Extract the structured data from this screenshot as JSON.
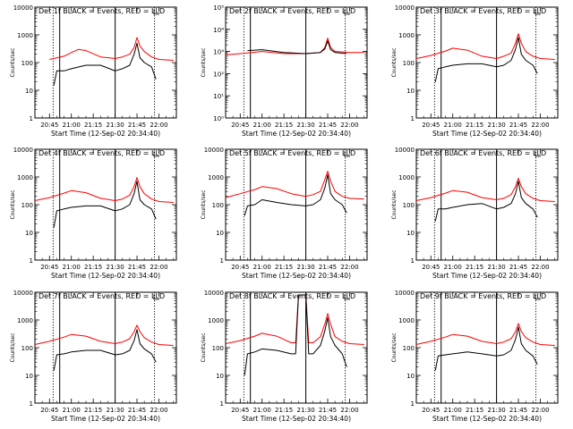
{
  "colors": {
    "events": "#000000",
    "lld": "#ff0000",
    "axes": "#000000",
    "background": "#ffffff"
  },
  "chart_data": [
    {
      "type": "line",
      "title": "Det 1f BLACK = Events, RED = LLD",
      "xlabel": "Start Time (12-Sep-02 20:34:40)",
      "ylabel": "Counts/sec",
      "x_tick_labels": [
        "20:45",
        "21:00",
        "21:15",
        "21:30",
        "21:45",
        "22:00"
      ],
      "y_tick_labels": [
        "1",
        "10",
        "100",
        "1000",
        "10000"
      ],
      "ylim": [
        1,
        10000
      ],
      "yscale": "log",
      "series": [
        {
          "x": [
            "20:45",
            "20:55",
            "21:00",
            "21:05",
            "21:10",
            "21:20",
            "21:30",
            "21:35",
            "21:40",
            "21:43",
            "21:45",
            "21:47",
            "21:50",
            "21:55",
            "22:00",
            "22:10"
          ],
          "values": [
            130,
            170,
            230,
            300,
            270,
            160,
            140,
            160,
            200,
            350,
            800,
            400,
            250,
            160,
            130,
            120
          ]
        },
        {
          "x": [
            "20:48",
            "20:50",
            "20:55",
            "21:00",
            "21:10",
            "21:20",
            "21:30",
            "21:35",
            "21:40",
            "21:43",
            "21:45",
            "21:47",
            "21:50",
            "21:55",
            "21:58"
          ],
          "values": [
            15,
            50,
            50,
            60,
            80,
            80,
            50,
            60,
            80,
            200,
            500,
            150,
            100,
            70,
            25
          ]
        }
      ]
    },
    {
      "type": "line",
      "title": "Det 2f BLACK = Events, RED = LLD",
      "xlabel": "Start Time (12-Sep-02 20:34:40)",
      "ylabel": "Counts/sec",
      "x_tick_labels": [
        "20:45",
        "21:00",
        "21:15",
        "21:30",
        "21:45",
        "22:00"
      ],
      "y_tick_labels": [
        "10⁰",
        "10¹",
        "10²",
        "10³",
        "10⁴",
        "10⁵"
      ],
      "ylim": [
        1,
        100000
      ],
      "yscale": "log",
      "series": [
        {
          "x": [
            "20:35",
            "20:45",
            "21:00",
            "21:15",
            "21:30",
            "21:40",
            "21:43",
            "21:45",
            "21:47",
            "21:50",
            "22:00",
            "22:10"
          ],
          "values": [
            700,
            800,
            1000,
            800,
            800,
            900,
            1500,
            4000,
            1500,
            1000,
            900,
            900
          ]
        },
        {
          "x": [
            "20:50",
            "21:00",
            "21:15",
            "21:30",
            "21:40",
            "21:43",
            "21:45",
            "21:47",
            "21:50",
            "21:58"
          ],
          "values": [
            1100,
            1200,
            900,
            800,
            900,
            1300,
            3000,
            1200,
            900,
            800
          ]
        }
      ]
    },
    {
      "type": "line",
      "title": "Det 3f BLACK = Events, RED = LLD",
      "xlabel": "Start Time (12-Sep-02 20:34:40)",
      "ylabel": "Counts/sec",
      "x_tick_labels": [
        "20:45",
        "21:00",
        "21:15",
        "21:30",
        "21:45",
        "22:00"
      ],
      "y_tick_labels": [
        "1",
        "10",
        "100",
        "1000",
        "10000"
      ],
      "ylim": [
        1,
        10000
      ],
      "yscale": "log",
      "series": [
        {
          "x": [
            "20:35",
            "20:45",
            "20:55",
            "21:00",
            "21:10",
            "21:20",
            "21:30",
            "21:35",
            "21:40",
            "21:43",
            "21:45",
            "21:47",
            "21:50",
            "21:55",
            "22:00",
            "22:10"
          ],
          "values": [
            140,
            180,
            260,
            330,
            280,
            170,
            140,
            170,
            220,
            500,
            1100,
            500,
            250,
            170,
            140,
            130
          ]
        },
        {
          "x": [
            "20:48",
            "20:50",
            "20:55",
            "21:00",
            "21:10",
            "21:20",
            "21:30",
            "21:35",
            "21:40",
            "21:43",
            "21:45",
            "21:47",
            "21:50",
            "21:55",
            "21:58"
          ],
          "values": [
            20,
            60,
            70,
            80,
            90,
            90,
            70,
            80,
            120,
            300,
            800,
            200,
            120,
            80,
            40
          ]
        }
      ]
    },
    {
      "type": "line",
      "title": "Det 4f BLACK = Events, RED = LLD",
      "xlabel": "Start Time (12-Sep-02 20:34:40)",
      "ylabel": "Counts/sec",
      "x_tick_labels": [
        "20:45",
        "21:00",
        "21:15",
        "21:30",
        "21:45",
        "22:00"
      ],
      "y_tick_labels": [
        "1",
        "10",
        "100",
        "1000",
        "10000"
      ],
      "ylim": [
        1,
        10000
      ],
      "yscale": "log",
      "series": [
        {
          "x": [
            "20:35",
            "20:45",
            "20:55",
            "21:00",
            "21:10",
            "21:20",
            "21:30",
            "21:35",
            "21:40",
            "21:43",
            "21:45",
            "21:47",
            "21:50",
            "21:55",
            "22:00",
            "22:10"
          ],
          "values": [
            140,
            180,
            260,
            320,
            270,
            170,
            140,
            160,
            220,
            450,
            950,
            450,
            250,
            160,
            130,
            120
          ]
        },
        {
          "x": [
            "20:48",
            "20:50",
            "20:55",
            "21:00",
            "21:10",
            "21:20",
            "21:30",
            "21:35",
            "21:40",
            "21:43",
            "21:45",
            "21:47",
            "21:50",
            "21:55",
            "21:58"
          ],
          "values": [
            15,
            60,
            70,
            80,
            90,
            90,
            60,
            70,
            100,
            250,
            700,
            150,
            100,
            70,
            30
          ]
        }
      ]
    },
    {
      "type": "line",
      "title": "Det 5f BLACK = Events, RED = LLD",
      "xlabel": "Start Time (12-Sep-02 20:34:40)",
      "ylabel": "Counts/sec",
      "x_tick_labels": [
        "20:45",
        "21:00",
        "21:15",
        "21:30",
        "21:45",
        "22:00"
      ],
      "y_tick_labels": [
        "1",
        "10",
        "100",
        "1000",
        "10000"
      ],
      "ylim": [
        1,
        10000
      ],
      "yscale": "log",
      "series": [
        {
          "x": [
            "20:35",
            "20:45",
            "20:55",
            "21:00",
            "21:10",
            "21:20",
            "21:30",
            "21:35",
            "21:40",
            "21:43",
            "21:45",
            "21:47",
            "21:50",
            "21:55",
            "22:00",
            "22:10"
          ],
          "values": [
            180,
            250,
            350,
            450,
            380,
            250,
            200,
            230,
            300,
            800,
            1600,
            700,
            300,
            200,
            170,
            160
          ]
        },
        {
          "x": [
            "20:48",
            "20:50",
            "20:55",
            "21:00",
            "21:10",
            "21:20",
            "21:30",
            "21:35",
            "21:40",
            "21:43",
            "21:45",
            "21:47",
            "21:50",
            "21:55",
            "21:58"
          ],
          "values": [
            40,
            90,
            100,
            150,
            120,
            100,
            90,
            100,
            150,
            400,
            1200,
            250,
            150,
            100,
            50
          ]
        }
      ]
    },
    {
      "type": "line",
      "title": "Det 6f BLACK = Events, RED = LLD",
      "xlabel": "Start Time (12-Sep-02 20:34:40)",
      "ylabel": "Counts/sec",
      "x_tick_labels": [
        "20:45",
        "21:00",
        "21:15",
        "21:30",
        "21:45",
        "22:00"
      ],
      "y_tick_labels": [
        "1",
        "10",
        "100",
        "1000",
        "10000"
      ],
      "ylim": [
        1,
        10000
      ],
      "yscale": "log",
      "series": [
        {
          "x": [
            "20:35",
            "20:45",
            "20:55",
            "21:00",
            "21:10",
            "21:20",
            "21:30",
            "21:35",
            "21:40",
            "21:43",
            "21:45",
            "21:47",
            "21:50",
            "21:55",
            "22:00",
            "22:10"
          ],
          "values": [
            140,
            180,
            260,
            320,
            280,
            180,
            150,
            170,
            230,
            450,
            900,
            450,
            250,
            170,
            140,
            130
          ]
        },
        {
          "x": [
            "20:48",
            "20:50",
            "20:55",
            "21:00",
            "21:10",
            "21:20",
            "21:30",
            "21:35",
            "21:40",
            "21:43",
            "21:45",
            "21:47",
            "21:50",
            "21:55",
            "21:58"
          ],
          "values": [
            25,
            70,
            70,
            80,
            100,
            110,
            70,
            80,
            110,
            250,
            700,
            180,
            110,
            70,
            35
          ]
        }
      ]
    },
    {
      "type": "line",
      "title": "Det 7f BLACK = Events, RED = LLD",
      "xlabel": "Start Time (12-Sep-02 20:34:40)",
      "ylabel": "Counts/sec",
      "x_tick_labels": [
        "20:45",
        "21:00",
        "21:15",
        "21:30",
        "21:45",
        "22:00"
      ],
      "y_tick_labels": [
        "1",
        "10",
        "100",
        "1000",
        "10000"
      ],
      "ylim": [
        1,
        10000
      ],
      "yscale": "log",
      "series": [
        {
          "x": [
            "20:35",
            "20:45",
            "20:55",
            "21:00",
            "21:10",
            "21:20",
            "21:30",
            "21:35",
            "21:40",
            "21:43",
            "21:45",
            "21:47",
            "21:50",
            "21:55",
            "22:00",
            "22:10"
          ],
          "values": [
            130,
            170,
            240,
            300,
            260,
            170,
            140,
            160,
            210,
            380,
            650,
            380,
            230,
            160,
            130,
            120
          ]
        },
        {
          "x": [
            "20:48",
            "20:50",
            "20:55",
            "21:00",
            "21:10",
            "21:20",
            "21:30",
            "21:35",
            "21:40",
            "21:43",
            "21:45",
            "21:47",
            "21:50",
            "21:55",
            "21:58"
          ],
          "values": [
            15,
            55,
            60,
            70,
            80,
            80,
            55,
            60,
            80,
            180,
            450,
            140,
            90,
            60,
            30
          ]
        }
      ]
    },
    {
      "type": "line",
      "title": "Det 8f BLACK = Events, RED = LLD",
      "xlabel": "Start Time (12-Sep-02 20:34:40)",
      "ylabel": "Counts/sec",
      "x_tick_labels": [
        "20:45",
        "21:00",
        "21:15",
        "21:30",
        "21:45",
        "22:00"
      ],
      "y_tick_labels": [
        "1",
        "10",
        "100",
        "1000",
        "10000"
      ],
      "ylim": [
        1,
        10000
      ],
      "yscale": "log",
      "series": [
        {
          "x": [
            "20:35",
            "20:45",
            "20:55",
            "21:00",
            "21:10",
            "21:20",
            "21:23",
            "21:25",
            "21:30",
            "21:32",
            "21:35",
            "21:40",
            "21:43",
            "21:45",
            "21:47",
            "21:50",
            "21:55",
            "22:00",
            "22:10"
          ],
          "values": [
            140,
            180,
            260,
            330,
            260,
            150,
            150,
            8000,
            8000,
            150,
            150,
            250,
            700,
            1700,
            700,
            250,
            170,
            140,
            130
          ]
        },
        {
          "x": [
            "20:48",
            "20:50",
            "20:55",
            "21:00",
            "21:10",
            "21:20",
            "21:23",
            "21:25",
            "21:30",
            "21:32",
            "21:35",
            "21:40",
            "21:43",
            "21:45",
            "21:47",
            "21:50",
            "21:55",
            "21:58"
          ],
          "values": [
            10,
            60,
            70,
            90,
            80,
            60,
            60,
            8000,
            8000,
            60,
            60,
            120,
            400,
            1200,
            250,
            120,
            60,
            20
          ]
        }
      ]
    },
    {
      "type": "line",
      "title": "Det 9f BLACK = Events, RED = LLD",
      "xlabel": "Start Time (12-Sep-02 20:34:40)",
      "ylabel": "Counts/sec",
      "x_tick_labels": [
        "20:45",
        "21:00",
        "21:15",
        "21:30",
        "21:45",
        "22:00"
      ],
      "y_tick_labels": [
        "1",
        "10",
        "100",
        "1000",
        "10000"
      ],
      "ylim": [
        1,
        10000
      ],
      "yscale": "log",
      "series": [
        {
          "x": [
            "20:35",
            "20:45",
            "20:55",
            "21:00",
            "21:10",
            "21:20",
            "21:30",
            "21:35",
            "21:40",
            "21:43",
            "21:45",
            "21:47",
            "21:50",
            "21:55",
            "22:00",
            "22:10"
          ],
          "values": [
            130,
            170,
            240,
            300,
            260,
            170,
            140,
            160,
            210,
            380,
            750,
            380,
            230,
            160,
            130,
            120
          ]
        },
        {
          "x": [
            "20:48",
            "20:50",
            "20:55",
            "21:00",
            "21:10",
            "21:20",
            "21:30",
            "21:35",
            "21:40",
            "21:43",
            "21:45",
            "21:47",
            "21:50",
            "21:55",
            "21:58"
          ],
          "values": [
            15,
            50,
            55,
            60,
            70,
            60,
            50,
            55,
            80,
            200,
            550,
            140,
            80,
            50,
            25
          ]
        }
      ]
    }
  ]
}
